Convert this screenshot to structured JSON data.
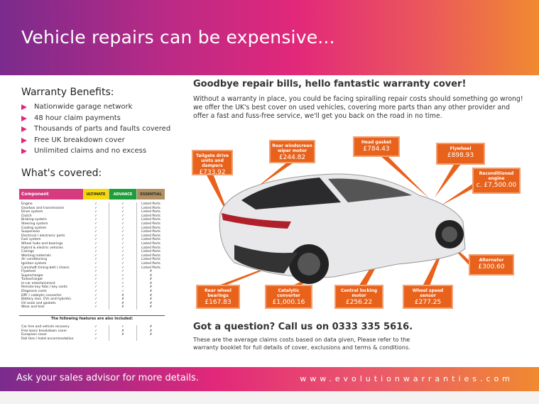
{
  "header": {
    "title": "Vehicle repairs can be expensive..."
  },
  "benefits": {
    "title": "Warranty Benefits:",
    "items": [
      "Nationwide garage network",
      "48 hour claim payments",
      "Thousands of parts and faults covered",
      "Free UK breakdown cover",
      "Unlimited claims and no excess"
    ]
  },
  "covered": {
    "title": "What's covered:",
    "headers": [
      "Component",
      "ULTIMATE",
      "ADVANCE",
      "ESSENTIAL"
    ],
    "header_colors": [
      "#d63a7f",
      "#f5d90a",
      "#1e9e3a",
      "#b09060"
    ],
    "rows": [
      [
        "Engine",
        "✓",
        "✓",
        "Listed Parts"
      ],
      [
        "Gearbox and transmission",
        "✓",
        "✓",
        "Listed Parts"
      ],
      [
        "Drive system",
        "✓",
        "✓",
        "Listed Parts"
      ],
      [
        "Clutch",
        "✓",
        "✓",
        "Listed Parts"
      ],
      [
        "Braking system",
        "✓",
        "✓",
        "Listed Parts"
      ],
      [
        "Steering system",
        "✓",
        "✓",
        "Listed Parts"
      ],
      [
        "Cooling system",
        "✓",
        "✓",
        "Listed Parts"
      ],
      [
        "Suspension",
        "✓",
        "✓",
        "Listed Parts"
      ],
      [
        "Electrical / electronic parts",
        "✓",
        "✓",
        "Listed Parts"
      ],
      [
        "Fuel system",
        "✓",
        "✓",
        "Listed Parts"
      ],
      [
        "Wheel hubs and bearings",
        "✓",
        "✓",
        "Listed Parts"
      ],
      [
        "Hybrid & electric vehicles",
        "✓",
        "✓",
        "Listed Parts"
      ],
      [
        "Casings",
        "✓",
        "✓",
        "Listed Parts"
      ],
      [
        "Working materials",
        "✓",
        "✓",
        "Listed Parts"
      ],
      [
        "Air conditioning",
        "✓",
        "✓",
        "Listed Parts"
      ],
      [
        "Ignition system",
        "✓",
        "✓",
        "Listed Parts"
      ],
      [
        "Camshaft timing belt / chains",
        "✓",
        "✓",
        "Listed Parts"
      ],
      [
        "Flywheel",
        "✓",
        "✓",
        "✗"
      ],
      [
        "Supercharger",
        "✓",
        "✓",
        "✗"
      ],
      [
        "Turbocharger",
        "✓",
        "✓",
        "✗"
      ],
      [
        "In-car entertainment",
        "✓",
        "✓",
        "✗"
      ],
      [
        "Remote key fobs / key cards",
        "✓",
        "✓",
        "✗"
      ],
      [
        "Diagnosis costs",
        "✓",
        "✓",
        "✗"
      ],
      [
        "DPF / catalytic converter",
        "✓",
        "✗",
        "✗"
      ],
      [
        "Battery (exc. EVs and hybrids)",
        "✓",
        "✗",
        "✗"
      ],
      [
        "Oil seals and gaskets",
        "✓",
        "✗",
        "✗"
      ],
      [
        "Wear and tear",
        "✓",
        "✗",
        "✗"
      ]
    ],
    "extras_title": "The following features are also included:",
    "extras": [
      [
        "Car hire and vehicle recovery",
        "✓",
        "✓",
        "✗"
      ],
      [
        "Free basic breakdown cover",
        "✓",
        "✗",
        "✗"
      ],
      [
        "European cover",
        "✓",
        "✗",
        "✗"
      ],
      [
        "Rail fare / hotel accommodation",
        "✓",
        "",
        ""
      ]
    ]
  },
  "main": {
    "title": "Goodbye repair bills, hello fantastic warranty cover!",
    "intro": "Without a warranty in place, you could be facing spiralling repair costs should something go wrong! we offer the UK's best cover on used vehicles, covering more parts than any other provider and offer a fast and fuss-free service, we'll get you back on the road in no time."
  },
  "callouts": [
    {
      "label": "Tailgate drive units and dampers",
      "price": "£733.92"
    },
    {
      "label": "Rear windscreen wiper motor",
      "price": "£244.82"
    },
    {
      "label": "Head gasket",
      "price": "£784.43"
    },
    {
      "label": "Flywheel",
      "price": "£898.93"
    },
    {
      "label": "Reconditioned engine",
      "price": "c. £7,500.00"
    },
    {
      "label": "Alternator",
      "price": "£300.60"
    },
    {
      "label": "Rear wheel bearings",
      "price": "£167.83"
    },
    {
      "label": "Catalytic converter",
      "price": "£1,000.16"
    },
    {
      "label": "Central locking motor",
      "price": "£256.22"
    },
    {
      "label": "Wheel speed sensor",
      "price": "£277.25"
    }
  ],
  "question": {
    "title": "Got a question? Call us on 0333 335 5616.",
    "text": "These are the average claims costs based on data given, Please refer to the warranty booklet for full details of cover, exclusions and terms & conditions."
  },
  "footer": {
    "left": "Ask your sales advisor for more details.",
    "right": "www.evolutionwarranties.com"
  },
  "colors": {
    "callout": "#e8621c",
    "accent": "#e0287a"
  }
}
